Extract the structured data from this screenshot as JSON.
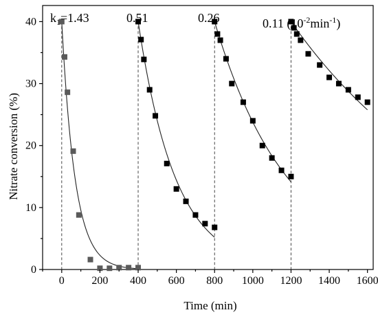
{
  "chart_data": {
    "type": "scatter",
    "xlabel": "Time (min)",
    "ylabel": "Nitrate conversion (%)",
    "xlim": [
      -100,
      1630
    ],
    "ylim": [
      0,
      42.6
    ],
    "x_ticks": [
      0,
      200,
      400,
      600,
      800,
      1000,
      1200,
      1400,
      1600
    ],
    "y_ticks": [
      0,
      10,
      20,
      30,
      40
    ],
    "grid": false,
    "legend": "none",
    "colors": {
      "run1_points": "#5a5a5a",
      "other_points": "#000000",
      "fit_line": "#222222",
      "divider": "#444444"
    },
    "annotations": [
      "k1=1.43",
      "0.51",
      "0.26",
      "0.11 (10-2min-1)"
    ],
    "divider_lines_x": [
      0,
      400,
      800,
      1200
    ],
    "series": [
      {
        "x": [
          0,
          15,
          30,
          60,
          90,
          150,
          200,
          250,
          300,
          350,
          400
        ],
        "y": [
          40,
          34.3,
          28.6,
          19.1,
          8.8,
          1.6,
          0.2,
          0.2,
          0.3,
          0.3,
          0.3
        ],
        "fit": {
          "x0": 0,
          "y0": 40,
          "k": 0.0143
        }
      },
      {
        "x": [
          400,
          415,
          430,
          460,
          490,
          550,
          600,
          650,
          700,
          750,
          800
        ],
        "y": [
          40,
          37.1,
          33.9,
          29.0,
          24.8,
          17.1,
          13.0,
          11.0,
          8.8,
          7.4,
          6.8
        ],
        "fit": {
          "x0": 400,
          "y0": 40,
          "k": 0.0051
        }
      },
      {
        "x": [
          800,
          815,
          830,
          860,
          890,
          950,
          1000,
          1050,
          1100,
          1150,
          1200
        ],
        "y": [
          40,
          38.0,
          37.0,
          34.0,
          30.0,
          27.0,
          24.0,
          20.0,
          18.0,
          16.0,
          15.0
        ],
        "fit": {
          "x0": 800,
          "y0": 40,
          "k": 0.0026
        }
      },
      {
        "x": [
          1200,
          1215,
          1230,
          1250,
          1290,
          1350,
          1400,
          1450,
          1500,
          1550,
          1600
        ],
        "y": [
          40,
          39.0,
          38.0,
          37.0,
          34.8,
          33.0,
          31.0,
          30.0,
          29.0,
          27.8,
          27.0
        ],
        "fit": {
          "x0": 1200,
          "y0": 40,
          "k": 0.0011
        }
      }
    ]
  }
}
